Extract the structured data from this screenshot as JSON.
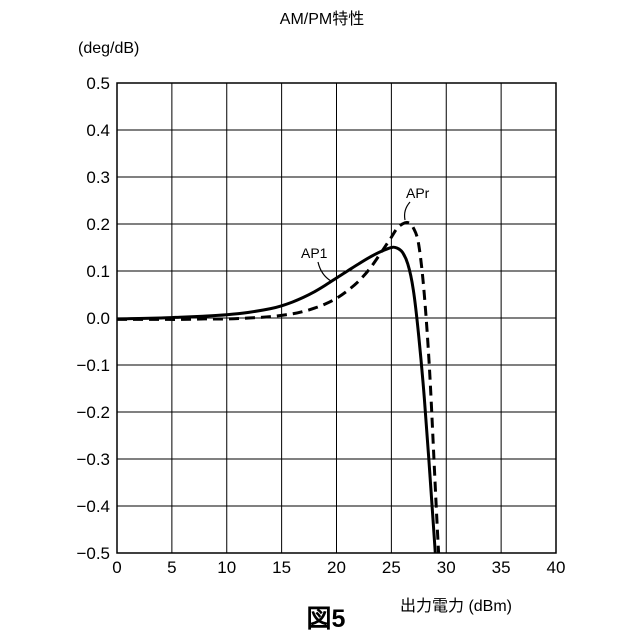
{
  "chart_data": {
    "type": "line",
    "title": "AM/PM特性",
    "ylabel": "(deg/dB)",
    "xlabel": "出力電力 (dBm)",
    "xlim": [
      0,
      40
    ],
    "ylim": [
      -0.5,
      0.5
    ],
    "x_ticks": [
      0,
      5,
      10,
      15,
      20,
      25,
      30,
      35,
      40
    ],
    "x_tick_labels": [
      "0",
      "5",
      "10",
      "15",
      "20",
      "25",
      "30",
      "35",
      "40"
    ],
    "y_ticks": [
      0.5,
      0.4,
      0.3,
      0.2,
      0.1,
      0.0,
      -0.1,
      -0.2,
      -0.3,
      -0.4,
      -0.5
    ],
    "y_tick_labels": [
      "0.5",
      "0.4",
      "0.3",
      "0.2",
      "0.1",
      "0.0",
      "−0.1",
      "−0.2",
      "−0.3",
      "−0.4",
      "−0.5"
    ],
    "grid": true,
    "series": [
      {
        "name": "AP1",
        "line_style": "solid",
        "color": "#000000",
        "x": [
          0,
          2,
          4,
          6,
          8,
          10,
          12,
          14,
          15,
          16,
          17,
          18,
          19,
          20,
          21,
          22,
          23,
          24,
          25,
          25.5,
          26,
          26.5,
          27,
          27.5,
          28,
          28.5,
          29
        ],
        "y": [
          -0.002,
          -0.001,
          0.0,
          0.002,
          0.004,
          0.007,
          0.012,
          0.02,
          0.026,
          0.034,
          0.044,
          0.056,
          0.07,
          0.085,
          0.1,
          0.115,
          0.129,
          0.141,
          0.15,
          0.149,
          0.14,
          0.115,
          0.06,
          -0.04,
          -0.17,
          -0.33,
          -0.5
        ]
      },
      {
        "name": "APr",
        "line_style": "dashed",
        "color": "#000000",
        "x": [
          0,
          2,
          4,
          6,
          8,
          10,
          12,
          14,
          16,
          17,
          18,
          19,
          20,
          21,
          22,
          23,
          24,
          25,
          25.5,
          26,
          26.5,
          27,
          27.5,
          28,
          28.5,
          29,
          29.3
        ],
        "y": [
          -0.003,
          -0.003,
          -0.003,
          -0.003,
          -0.002,
          -0.002,
          0.0,
          0.003,
          0.009,
          0.014,
          0.021,
          0.03,
          0.042,
          0.058,
          0.078,
          0.104,
          0.137,
          0.172,
          0.19,
          0.2,
          0.203,
          0.192,
          0.155,
          0.05,
          -0.12,
          -0.36,
          -0.5
        ]
      }
    ]
  },
  "figure_caption": "図5"
}
